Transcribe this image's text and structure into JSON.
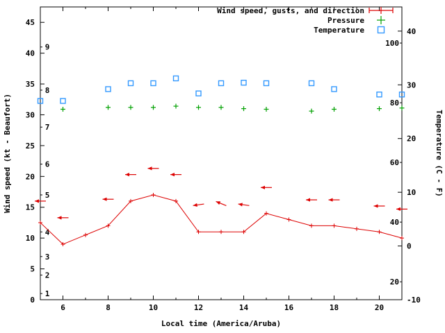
{
  "chart_data": {
    "type": "line",
    "title": "",
    "xlabel": "Local time (America/Aruba)",
    "ylabel_left": "Wind speed (kt - Beaufort)",
    "ylabel_right": "Temperature (C - F)",
    "x_range": [
      5,
      21
    ],
    "y_left_range": [
      0,
      47.5
    ],
    "y_right_range": [
      -10,
      44.5
    ],
    "x_major_ticks": [
      6,
      8,
      10,
      12,
      14,
      16,
      18,
      20
    ],
    "y_left_ticks": [
      0,
      5,
      10,
      15,
      20,
      25,
      30,
      35,
      40,
      45
    ],
    "y_right_ticks": [
      -10,
      0,
      10,
      20,
      30,
      40
    ],
    "beaufort_scale": [
      {
        "label": "1",
        "kt": 1
      },
      {
        "label": "2",
        "kt": 4
      },
      {
        "label": "3",
        "kt": 7
      },
      {
        "label": "4",
        "kt": 11
      },
      {
        "label": "5",
        "kt": 17
      },
      {
        "label": "6",
        "kt": 22
      },
      {
        "label": "7",
        "kt": 28
      },
      {
        "label": "8",
        "kt": 34
      },
      {
        "label": "9",
        "kt": 41
      }
    ],
    "fahrenheit_scale": [
      {
        "label": "20",
        "f": 20
      },
      {
        "label": "40",
        "f": 40
      },
      {
        "label": "60",
        "f": 60
      },
      {
        "label": "80",
        "f": 80
      },
      {
        "label": "100",
        "f": 100
      }
    ],
    "legend": [
      {
        "label": "Wind speed, gusts, and direction",
        "color": "#dd0000",
        "symbol": "errorbar-line"
      },
      {
        "label": "Pressure",
        "color": "#00a000",
        "symbol": "plus"
      },
      {
        "label": "Temperature",
        "color": "#3399ff",
        "symbol": "open-square"
      }
    ],
    "series": {
      "wind_speed_kt": {
        "x": [
          5,
          6,
          7,
          8,
          9,
          10,
          11,
          12,
          13,
          14,
          15,
          16,
          17,
          18,
          19,
          20,
          21
        ],
        "y": [
          12.5,
          9,
          10.5,
          12,
          16,
          17,
          16,
          11,
          11,
          11,
          14,
          13,
          12,
          12,
          11.5,
          11,
          10
        ]
      },
      "wind_direction_arrows": [
        {
          "x": 5,
          "kt": 16,
          "deg": 180
        },
        {
          "x": 6,
          "kt": 13.3,
          "deg": 180
        },
        {
          "x": 8,
          "kt": 16.3,
          "deg": 180
        },
        {
          "x": 9,
          "kt": 20.3,
          "deg": 180
        },
        {
          "x": 10,
          "kt": 21.3,
          "deg": 180
        },
        {
          "x": 11,
          "kt": 20.3,
          "deg": 180
        },
        {
          "x": 12,
          "kt": 15.4,
          "deg": 188
        },
        {
          "x": 13,
          "kt": 15.6,
          "deg": 158
        },
        {
          "x": 14,
          "kt": 15.4,
          "deg": 172
        },
        {
          "x": 15,
          "kt": 18.2,
          "deg": 180
        },
        {
          "x": 17,
          "kt": 16.2,
          "deg": 180
        },
        {
          "x": 18,
          "kt": 16.2,
          "deg": 180
        },
        {
          "x": 20,
          "kt": 15.2,
          "deg": 180
        },
        {
          "x": 21,
          "kt": 14.7,
          "deg": 180
        }
      ],
      "pressure_marks": {
        "x": [
          6,
          8,
          9,
          10,
          11,
          12,
          13,
          14,
          15,
          17,
          18,
          20,
          21
        ],
        "kt_position": [
          30.9,
          31.2,
          31.2,
          31.2,
          31.4,
          31.2,
          31.2,
          31.0,
          30.9,
          30.6,
          30.9,
          31.0,
          31.1
        ]
      },
      "temperature_c": {
        "x": [
          5,
          6,
          8,
          9,
          10,
          11,
          12,
          13,
          14,
          15,
          17,
          18,
          20,
          21
        ],
        "c": [
          27,
          27,
          29.2,
          30.3,
          30.3,
          31.2,
          28.4,
          30.3,
          30.4,
          30.3,
          30.3,
          29.2,
          28.2,
          28.2
        ]
      }
    }
  }
}
